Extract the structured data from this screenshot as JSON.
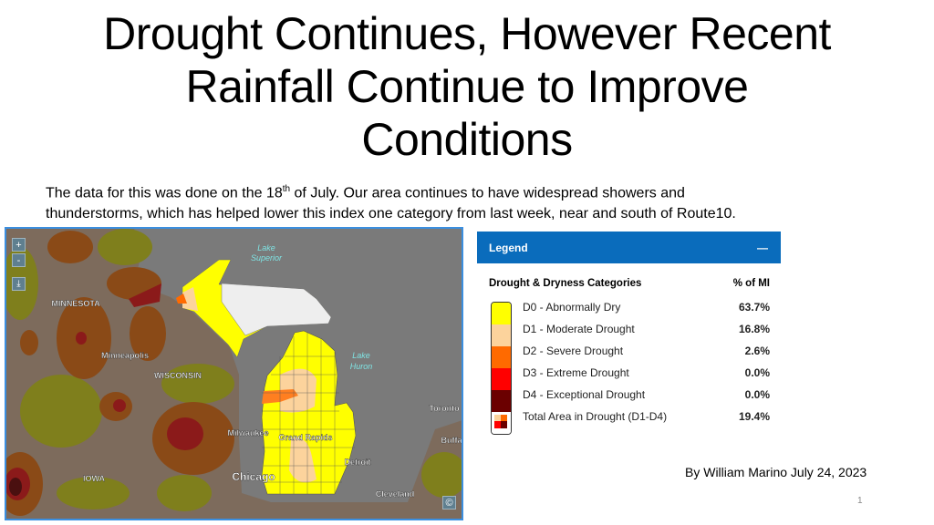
{
  "title": [
    "Drought Continues, However Recent",
    "Rainfall Continue to Improve",
    "Conditions"
  ],
  "body": {
    "line1_pre": "The data for this was done on the 18",
    "line1_sup": "th",
    "line1_post": " of July.  Our area continues to have widespread showers and",
    "line2": "thunderstorms, which has helped lower this index one category from last week, near and south of Route10."
  },
  "map": {
    "controls": {
      "zoom_in": "+",
      "zoom_out": "-",
      "download_icon": "download-icon",
      "copyright": "©"
    },
    "labels": {
      "minnesota": "MINNESOTA",
      "minneapolis": "Minneapolis",
      "wisconsin": "WISCONSIN",
      "iowa": "IOWA",
      "milwaukee": "Milwaukee",
      "grand_rapids": "Grand Rapids",
      "detroit": "Detroit",
      "chicago": "Chicago",
      "cleveland": "Cleveland",
      "toronto": "Toronto",
      "buffalo": "Buffa",
      "lake_superior_1": "Lake",
      "lake_superior_2": "Superior",
      "lake_huron_1": "Lake",
      "lake_huron_2": "Huron"
    }
  },
  "legend": {
    "title": "Legend",
    "collapse": "—",
    "col_category": "Drought & Dryness Categories",
    "col_pct": "% of MI",
    "rows": [
      {
        "label": "D0 - Abnormally Dry",
        "pct": "63.7%",
        "color": "#ffff00"
      },
      {
        "label": "D1 - Moderate Drought",
        "pct": "16.8%",
        "color": "#fcd39c"
      },
      {
        "label": "D2 - Severe Drought",
        "pct": "2.6%",
        "color": "#ff6a00"
      },
      {
        "label": "D3 - Extreme Drought",
        "pct": "0.0%",
        "color": "#ff0000"
      },
      {
        "label": "D4 - Exceptional Drought",
        "pct": "0.0%",
        "color": "#6b0000"
      },
      {
        "label": "Total Area in Drought (D1-D4)",
        "pct": "19.4%"
      }
    ]
  },
  "byline": "By William Marino  July 24, 2023",
  "page_number": "1"
}
